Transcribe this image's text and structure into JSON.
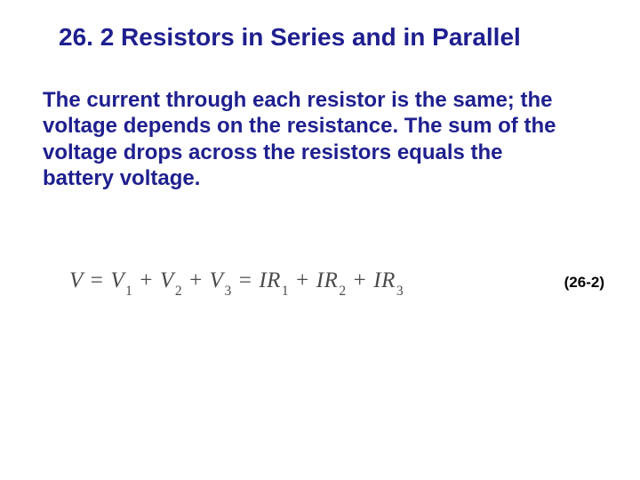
{
  "title": {
    "text": "26. 2 Resistors in Series and in Parallel",
    "color": "#1f1f8f",
    "fontsize": 28
  },
  "body": {
    "text": "The current through each resistor is the same; the voltage depends on the resistance. The sum of the voltage drops across the resistors equals the battery voltage.",
    "color": "#1f1f8f",
    "fontsize": 24
  },
  "equation": {
    "V": "V",
    "eq": "=",
    "V1": "V",
    "s1": "1",
    "plus": "+",
    "V2": "V",
    "s2": "2",
    "V3": "V",
    "s3": "3",
    "IR1a": "IR",
    "sr1": "1",
    "IR2a": "IR",
    "sr2": "2",
    "IR3a": "IR",
    "sr3": "3",
    "fontsize": 25,
    "color": "#4a4a4a"
  },
  "eqnum": {
    "text": "(26-2)",
    "fontsize": 17,
    "color": "#000000"
  }
}
